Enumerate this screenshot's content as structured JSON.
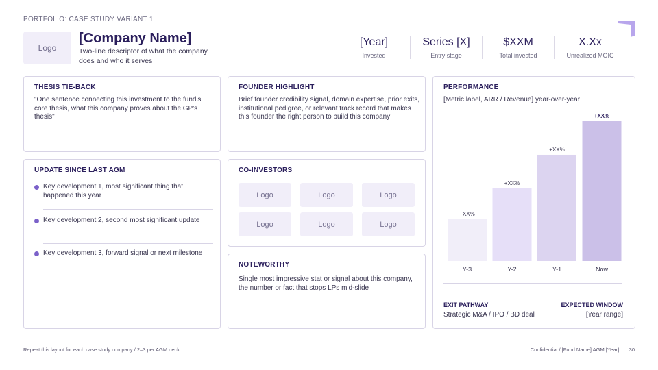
{
  "header": {
    "eyebrow": "PORTFOLIO: CASE STUDY VARIANT 1",
    "logo_label": "Logo",
    "company_name": "[Company Name]",
    "company_desc": "Two-line descriptor of what the company does and who it serves",
    "brand_color": "#7b61c9"
  },
  "stats": [
    {
      "value": "[Year]",
      "label": "Invested"
    },
    {
      "value": "Series [X]",
      "label": "Entry stage"
    },
    {
      "value": "$XXM",
      "label": "Total invested"
    },
    {
      "value": "X.Xx",
      "label": "Unrealized MOIC"
    }
  ],
  "thesis": {
    "title": "THESIS TIE-BACK",
    "body": "\"One sentence connecting this investment to the fund's core thesis, what this company proves about the GP's thesis\""
  },
  "founder": {
    "title": "FOUNDER HIGHLIGHT",
    "body": "Brief founder credibility signal, domain expertise, prior exits, institutional pedigree, or relevant track record that makes this founder the right person to build this company"
  },
  "update": {
    "title": "UPDATE SINCE LAST AGM",
    "items": [
      "Key development 1, most significant thing that happened this year",
      "Key development 2, second most significant update",
      "Key development 3, forward signal or next milestone"
    ]
  },
  "coinvestors": {
    "title": "CO-INVESTORS",
    "logos": [
      "Logo",
      "Logo",
      "Logo",
      "Logo",
      "Logo",
      "Logo"
    ]
  },
  "noteworthy": {
    "title": "NOTEWORTHY",
    "body": "Single most impressive stat or signal about this company, the number or fact that stops LPs mid-slide"
  },
  "performance": {
    "title": "PERFORMANCE",
    "subtitle": "[Metric label, ARR / Revenue] year-over-year",
    "exit_title": "EXIT PATHWAY",
    "exit_value": "Strategic M&A / IPO / BD deal",
    "window_title": "EXPECTED WINDOW",
    "window_value": "[Year range]"
  },
  "chart_data": {
    "type": "bar",
    "categories": [
      "Y-3",
      "Y-2",
      "Y-1",
      "Now"
    ],
    "values": [
      30,
      52,
      76,
      100
    ],
    "data_labels": [
      "+XX%",
      "+XX%",
      "+XX%",
      "+XX%"
    ],
    "ylim": [
      0,
      100
    ],
    "colors": [
      "#f1eef9",
      "#e6dff8",
      "#dcd4f0",
      "#cbc0e8"
    ],
    "grid": false,
    "legend": "none"
  },
  "footer": {
    "left": "Repeat this layout for each case study company / 2–3 per AGM deck",
    "right": "Confidential / [Fund Name] AGM [Year]",
    "page": "30"
  }
}
